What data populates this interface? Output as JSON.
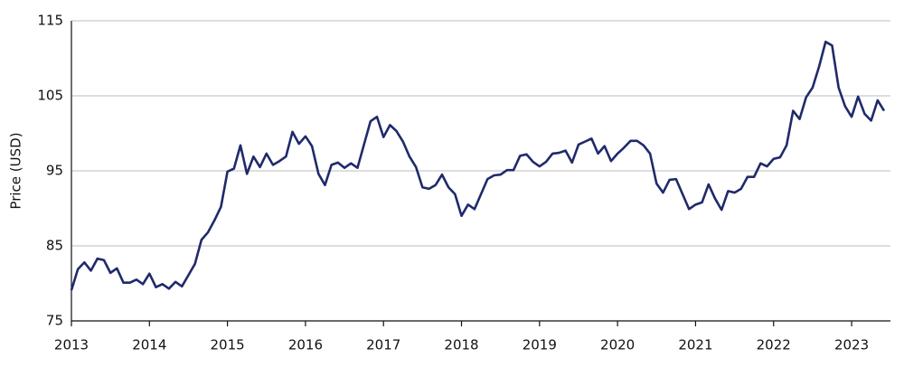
{
  "chart_data": {
    "type": "line",
    "y_label": "Price (USD)",
    "categories": [
      "2013",
      null,
      null,
      null,
      null,
      null,
      null,
      null,
      null,
      null,
      null,
      null,
      "2014",
      null,
      null,
      null,
      null,
      null,
      null,
      null,
      null,
      null,
      null,
      null,
      "2015",
      null,
      null,
      null,
      null,
      null,
      null,
      null,
      null,
      null,
      null,
      null,
      "2016",
      null,
      null,
      null,
      null,
      null,
      null,
      null,
      null,
      null,
      null,
      null,
      "2017",
      null,
      null,
      null,
      null,
      null,
      null,
      null,
      null,
      null,
      null,
      null,
      "2018",
      null,
      null,
      null,
      null,
      null,
      null,
      null,
      null,
      null,
      null,
      null,
      "2019",
      null,
      null,
      null,
      null,
      null,
      null,
      null,
      null,
      null,
      null,
      null,
      "2020",
      null,
      null,
      null,
      null,
      null,
      null,
      null,
      null,
      null,
      null,
      null,
      "2021",
      null,
      null,
      null,
      null,
      null,
      null,
      null,
      null,
      null,
      null,
      null,
      "2022",
      null,
      null,
      null,
      null,
      null,
      null,
      null,
      null,
      null,
      null,
      null,
      "2023",
      null,
      null,
      null,
      null,
      null
    ],
    "color": "#1f2a6b",
    "values": [
      79.1,
      81.9,
      82.8,
      81.7,
      83.3,
      83.1,
      81.4,
      82.0,
      80.1,
      80.1,
      80.5,
      79.9,
      81.3,
      79.5,
      79.9,
      79.3,
      80.2,
      79.6,
      81.1,
      82.6,
      85.8,
      86.8,
      88.4,
      90.2,
      94.9,
      95.3,
      98.4,
      94.6,
      96.9,
      95.5,
      97.3,
      95.8,
      96.3,
      96.9,
      100.2,
      98.6,
      99.6,
      98.3,
      94.6,
      93.1,
      95.8,
      96.1,
      95.4,
      96.0,
      95.4,
      98.5,
      101.6,
      102.2,
      99.5,
      101.1,
      100.3,
      98.9,
      96.9,
      95.5,
      92.8,
      92.6,
      93.1,
      94.5,
      92.8,
      91.9,
      89.0,
      90.5,
      89.9,
      91.9,
      93.9,
      94.4,
      94.5,
      95.1,
      95.1,
      97.0,
      97.2,
      96.2,
      95.6,
      96.2,
      97.3,
      97.4,
      97.7,
      96.1,
      98.5,
      98.9,
      99.3,
      97.3,
      98.3,
      96.3,
      97.3,
      98.1,
      99.0,
      99.0,
      98.4,
      97.3,
      93.3,
      92.1,
      93.8,
      93.9,
      91.9,
      89.9,
      90.5,
      90.8,
      93.2,
      91.3,
      89.8,
      92.3,
      92.1,
      92.6,
      94.2,
      94.2,
      96.0,
      95.6,
      96.6,
      96.8,
      98.4,
      103.0,
      101.9,
      104.8,
      106.1,
      108.9,
      112.2,
      111.7,
      106.1,
      103.6,
      102.2,
      104.9,
      102.6,
      101.7,
      104.4,
      103.0
    ],
    "ylim": [
      75,
      115
    ],
    "yticks": [
      75,
      85,
      95,
      105,
      115
    ],
    "grid": true
  }
}
